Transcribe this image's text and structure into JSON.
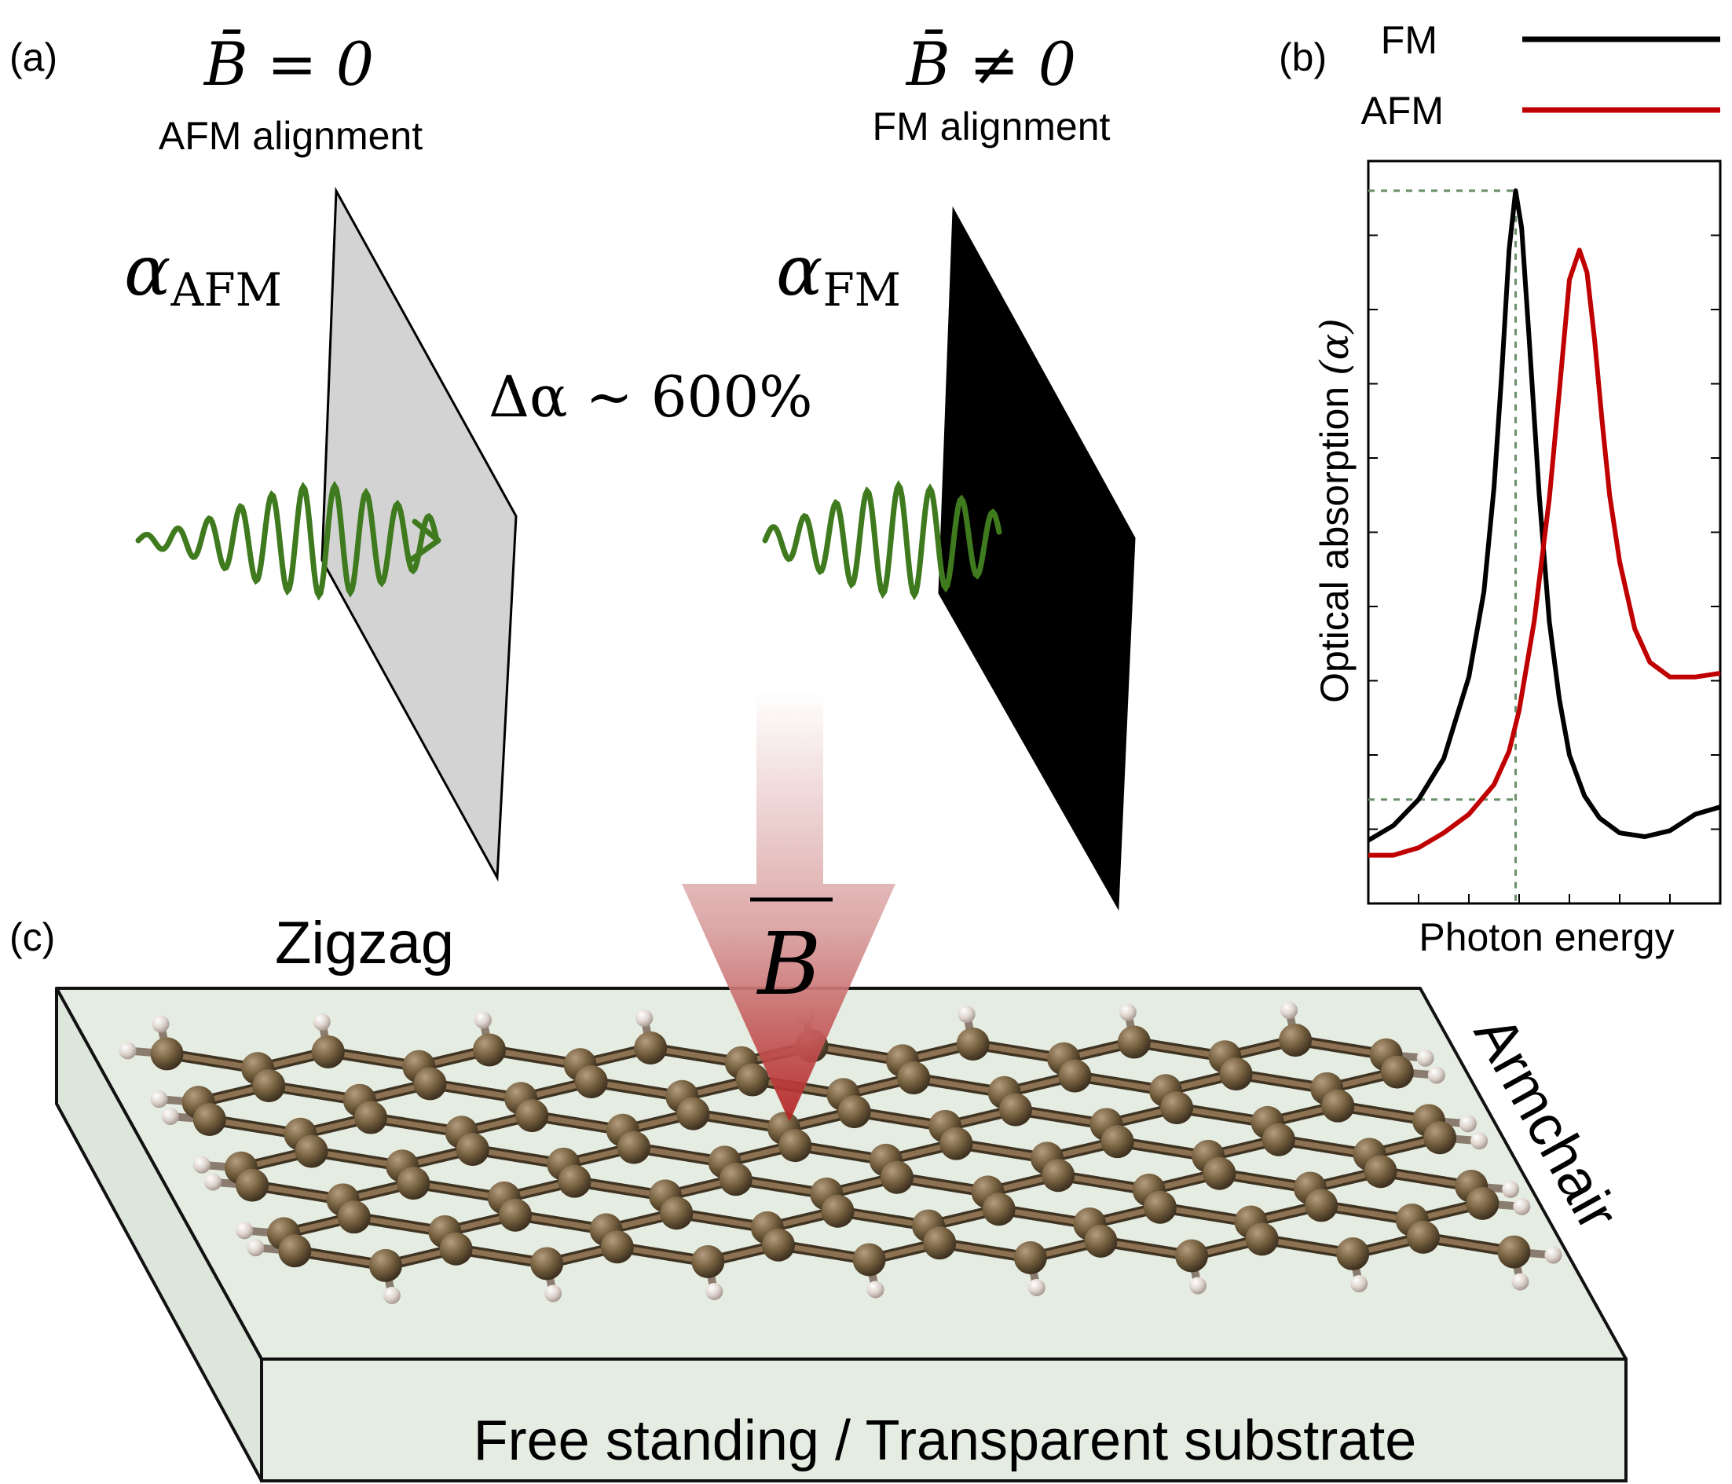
{
  "panel_a": {
    "label": "(a)",
    "left_condition": "B̄ = 0",
    "left_alignment": "AFM alignment",
    "left_alpha": "α",
    "left_alpha_sub": "AFM",
    "right_condition": "B̄ ≠ 0",
    "right_alignment": "FM alignment",
    "right_alpha": "α",
    "right_alpha_sub": "FM",
    "delta": "Δα ∼ 600%"
  },
  "panel_b": {
    "label": "(b)",
    "legend": [
      {
        "name": "FM",
        "color": "#000000"
      },
      {
        "name": "AFM",
        "color": "#c00000"
      }
    ],
    "ylabel": "Optical absorption",
    "ylabel_symbol": "(α)",
    "xlabel": "Photon energy"
  },
  "panel_c": {
    "label": "(c)",
    "zigzag_label": "Zigzag",
    "armchair_label": "Armchair",
    "substrate_label": "Free standing / Transparent substrate",
    "field_label": "B"
  },
  "chart_data": {
    "type": "line",
    "title": "",
    "xlabel": "Photon energy",
    "ylabel": "Optical absorption (α)",
    "xlim": [
      0,
      7
    ],
    "ylim": [
      0,
      10
    ],
    "xticks": [
      1,
      2,
      3,
      4,
      5,
      6
    ],
    "yticks": [
      1,
      2,
      3,
      4,
      5,
      6,
      7,
      8,
      9
    ],
    "guides": {
      "peak_x": 2.93,
      "fm_peak_y": 9.6,
      "fm_at_peak_y": 1.4
    },
    "series": [
      {
        "name": "FM",
        "color": "#000000",
        "x": [
          0.0,
          0.5,
          1.0,
          1.5,
          2.0,
          2.3,
          2.5,
          2.65,
          2.8,
          2.93,
          3.05,
          3.2,
          3.4,
          3.6,
          3.8,
          4.0,
          4.3,
          4.6,
          5.0,
          5.5,
          6.0,
          6.5,
          7.0
        ],
        "y": [
          0.85,
          1.05,
          1.4,
          1.95,
          3.05,
          4.2,
          5.6,
          7.1,
          8.8,
          9.6,
          9.1,
          7.6,
          5.5,
          3.8,
          2.75,
          2.0,
          1.45,
          1.15,
          0.95,
          0.9,
          0.98,
          1.2,
          1.3
        ]
      },
      {
        "name": "AFM",
        "color": "#c00000",
        "x": [
          0.0,
          0.5,
          1.0,
          1.5,
          2.0,
          2.5,
          2.8,
          3.0,
          3.3,
          3.6,
          3.8,
          4.0,
          4.2,
          4.35,
          4.5,
          4.65,
          4.8,
          5.0,
          5.3,
          5.6,
          6.0,
          6.5,
          7.0
        ],
        "y": [
          0.65,
          0.65,
          0.75,
          0.95,
          1.2,
          1.6,
          2.05,
          2.6,
          3.8,
          5.45,
          6.9,
          8.4,
          8.8,
          8.5,
          7.6,
          6.5,
          5.5,
          4.6,
          3.7,
          3.25,
          3.05,
          3.05,
          3.1
        ]
      }
    ]
  }
}
